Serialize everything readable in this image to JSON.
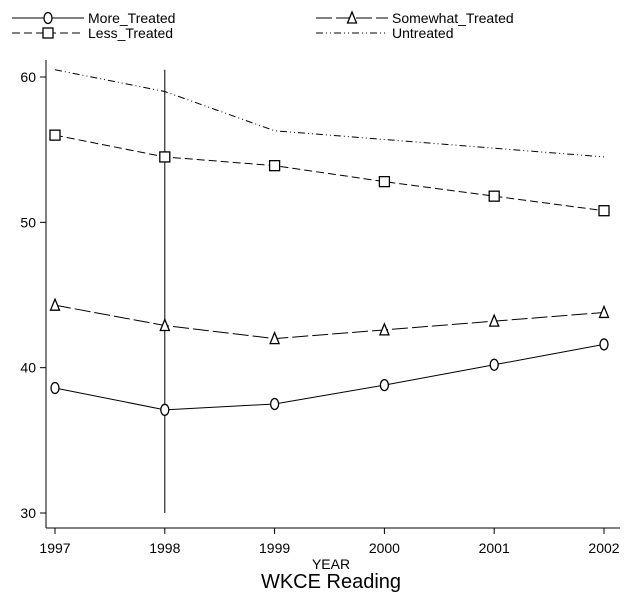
{
  "chart_data": {
    "type": "line",
    "caption": "WKCE Reading",
    "xlabel": "YEAR",
    "ylabel": "",
    "x": [
      "1997",
      "1998",
      "1999",
      "2000",
      "2001",
      "2002"
    ],
    "xlim": [
      1997,
      2002
    ],
    "ylim": [
      30,
      62
    ],
    "yticks": [
      30,
      40,
      50,
      60
    ],
    "grid": false,
    "legend_position": "top",
    "reference_line": {
      "x": 1998,
      "y_from": 30,
      "y_to": 60.5
    },
    "series": [
      {
        "name": "More_Treated",
        "marker": "circle",
        "dash": "solid",
        "values": [
          38.6,
          37.1,
          37.5,
          38.8,
          40.2,
          41.6
        ]
      },
      {
        "name": "Somewhat_Treated",
        "marker": "triangle",
        "dash": "long-dash",
        "values": [
          44.3,
          42.9,
          42.0,
          42.6,
          43.2,
          43.8
        ]
      },
      {
        "name": "Less_Treated",
        "marker": "square",
        "dash": "dash",
        "values": [
          56.0,
          54.5,
          53.9,
          52.8,
          51.8,
          50.8
        ]
      },
      {
        "name": "Untreated",
        "marker": "none",
        "dash": "dash-dot-dot",
        "values": [
          60.5,
          59.0,
          56.3,
          55.7,
          55.1,
          54.5
        ]
      }
    ]
  }
}
